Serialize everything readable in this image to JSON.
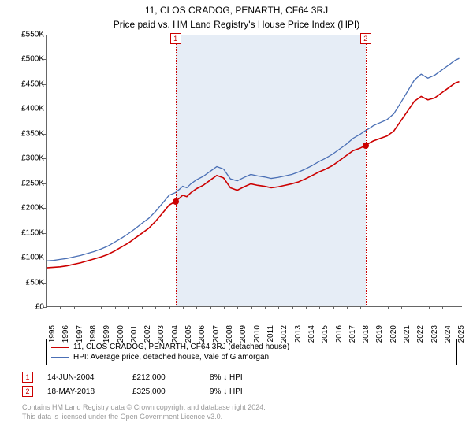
{
  "title_line1": "11, CLOS CRADOG, PENARTH, CF64 3RJ",
  "title_line2": "Price paid vs. HM Land Registry's House Price Index (HPI)",
  "chart": {
    "type": "line",
    "background_color": "#ffffff",
    "shade_color": "rgba(200,215,235,0.45)",
    "xlim": [
      1995,
      2025.5
    ],
    "ylim": [
      0,
      550000
    ],
    "ytick_step": 50000,
    "xtick_step": 1,
    "ylabel_prefix": "£",
    "ylabel_suffix": "K",
    "axis_color": "#666666",
    "label_fontsize": 10,
    "series": [
      {
        "name": "property",
        "color": "#cc0000",
        "width": 1.6,
        "legend": "11, CLOS CRADOG, PENARTH, CF64 3RJ (detached house)",
        "points": [
          [
            1995.0,
            78000
          ],
          [
            1995.5,
            79000
          ],
          [
            1996.0,
            80000
          ],
          [
            1996.5,
            82000
          ],
          [
            1997.0,
            85000
          ],
          [
            1997.5,
            88000
          ],
          [
            1998.0,
            92000
          ],
          [
            1998.5,
            96000
          ],
          [
            1999.0,
            100000
          ],
          [
            1999.5,
            105000
          ],
          [
            2000.0,
            112000
          ],
          [
            2000.5,
            120000
          ],
          [
            2001.0,
            128000
          ],
          [
            2001.5,
            138000
          ],
          [
            2002.0,
            148000
          ],
          [
            2002.5,
            158000
          ],
          [
            2003.0,
            172000
          ],
          [
            2003.5,
            188000
          ],
          [
            2004.0,
            205000
          ],
          [
            2004.45,
            212000
          ],
          [
            2004.8,
            220000
          ],
          [
            2005.0,
            225000
          ],
          [
            2005.3,
            222000
          ],
          [
            2005.6,
            230000
          ],
          [
            2006.0,
            238000
          ],
          [
            2006.5,
            245000
          ],
          [
            2007.0,
            255000
          ],
          [
            2007.5,
            265000
          ],
          [
            2008.0,
            260000
          ],
          [
            2008.5,
            240000
          ],
          [
            2009.0,
            235000
          ],
          [
            2009.5,
            242000
          ],
          [
            2010.0,
            248000
          ],
          [
            2010.5,
            245000
          ],
          [
            2011.0,
            243000
          ],
          [
            2011.5,
            240000
          ],
          [
            2012.0,
            242000
          ],
          [
            2012.5,
            245000
          ],
          [
            2013.0,
            248000
          ],
          [
            2013.5,
            252000
          ],
          [
            2014.0,
            258000
          ],
          [
            2014.5,
            265000
          ],
          [
            2015.0,
            272000
          ],
          [
            2015.5,
            278000
          ],
          [
            2016.0,
            285000
          ],
          [
            2016.5,
            295000
          ],
          [
            2017.0,
            305000
          ],
          [
            2017.5,
            315000
          ],
          [
            2018.0,
            320000
          ],
          [
            2018.38,
            325000
          ],
          [
            2018.8,
            332000
          ],
          [
            2019.0,
            335000
          ],
          [
            2019.5,
            340000
          ],
          [
            2020.0,
            345000
          ],
          [
            2020.5,
            355000
          ],
          [
            2021.0,
            375000
          ],
          [
            2021.5,
            395000
          ],
          [
            2022.0,
            415000
          ],
          [
            2022.5,
            425000
          ],
          [
            2023.0,
            418000
          ],
          [
            2023.5,
            422000
          ],
          [
            2024.0,
            432000
          ],
          [
            2024.5,
            442000
          ],
          [
            2025.0,
            452000
          ],
          [
            2025.3,
            455000
          ]
        ]
      },
      {
        "name": "hpi",
        "color": "#4a6fb5",
        "width": 1.3,
        "legend": "HPI: Average price, detached house, Vale of Glamorgan",
        "points": [
          [
            1995.0,
            92000
          ],
          [
            1995.5,
            93000
          ],
          [
            1996.0,
            95000
          ],
          [
            1996.5,
            97000
          ],
          [
            1997.0,
            100000
          ],
          [
            1997.5,
            103000
          ],
          [
            1998.0,
            107000
          ],
          [
            1998.5,
            111000
          ],
          [
            1999.0,
            116000
          ],
          [
            1999.5,
            122000
          ],
          [
            2000.0,
            130000
          ],
          [
            2000.5,
            138000
          ],
          [
            2001.0,
            147000
          ],
          [
            2001.5,
            157000
          ],
          [
            2002.0,
            168000
          ],
          [
            2002.5,
            178000
          ],
          [
            2003.0,
            192000
          ],
          [
            2003.5,
            208000
          ],
          [
            2004.0,
            225000
          ],
          [
            2004.45,
            230000
          ],
          [
            2004.8,
            238000
          ],
          [
            2005.0,
            243000
          ],
          [
            2005.3,
            240000
          ],
          [
            2005.6,
            248000
          ],
          [
            2006.0,
            256000
          ],
          [
            2006.5,
            263000
          ],
          [
            2007.0,
            273000
          ],
          [
            2007.5,
            283000
          ],
          [
            2008.0,
            278000
          ],
          [
            2008.5,
            258000
          ],
          [
            2009.0,
            254000
          ],
          [
            2009.5,
            261000
          ],
          [
            2010.0,
            267000
          ],
          [
            2010.5,
            264000
          ],
          [
            2011.0,
            262000
          ],
          [
            2011.5,
            259000
          ],
          [
            2012.0,
            261000
          ],
          [
            2012.5,
            264000
          ],
          [
            2013.0,
            267000
          ],
          [
            2013.5,
            272000
          ],
          [
            2014.0,
            278000
          ],
          [
            2014.5,
            285000
          ],
          [
            2015.0,
            293000
          ],
          [
            2015.5,
            300000
          ],
          [
            2016.0,
            308000
          ],
          [
            2016.5,
            318000
          ],
          [
            2017.0,
            328000
          ],
          [
            2017.5,
            340000
          ],
          [
            2018.0,
            348000
          ],
          [
            2018.38,
            355000
          ],
          [
            2018.8,
            362000
          ],
          [
            2019.0,
            366000
          ],
          [
            2019.5,
            372000
          ],
          [
            2020.0,
            378000
          ],
          [
            2020.5,
            390000
          ],
          [
            2021.0,
            412000
          ],
          [
            2021.5,
            435000
          ],
          [
            2022.0,
            458000
          ],
          [
            2022.5,
            470000
          ],
          [
            2023.0,
            462000
          ],
          [
            2023.5,
            468000
          ],
          [
            2024.0,
            478000
          ],
          [
            2024.5,
            488000
          ],
          [
            2025.0,
            498000
          ],
          [
            2025.3,
            502000
          ]
        ]
      }
    ],
    "markers": [
      {
        "id": "1",
        "x": 2004.45,
        "y": 212000,
        "color": "#cc0000"
      },
      {
        "id": "2",
        "x": 2018.38,
        "y": 325000,
        "color": "#cc0000"
      }
    ]
  },
  "transactions": [
    {
      "id": "1",
      "date": "14-JUN-2004",
      "price": "£212,000",
      "delta": "8% ↓ HPI",
      "color": "#cc0000"
    },
    {
      "id": "2",
      "date": "18-MAY-2018",
      "price": "£325,000",
      "delta": "9% ↓ HPI",
      "color": "#cc0000"
    }
  ],
  "footer_line1": "Contains HM Land Registry data © Crown copyright and database right 2024.",
  "footer_line2": "This data is licensed under the Open Government Licence v3.0."
}
